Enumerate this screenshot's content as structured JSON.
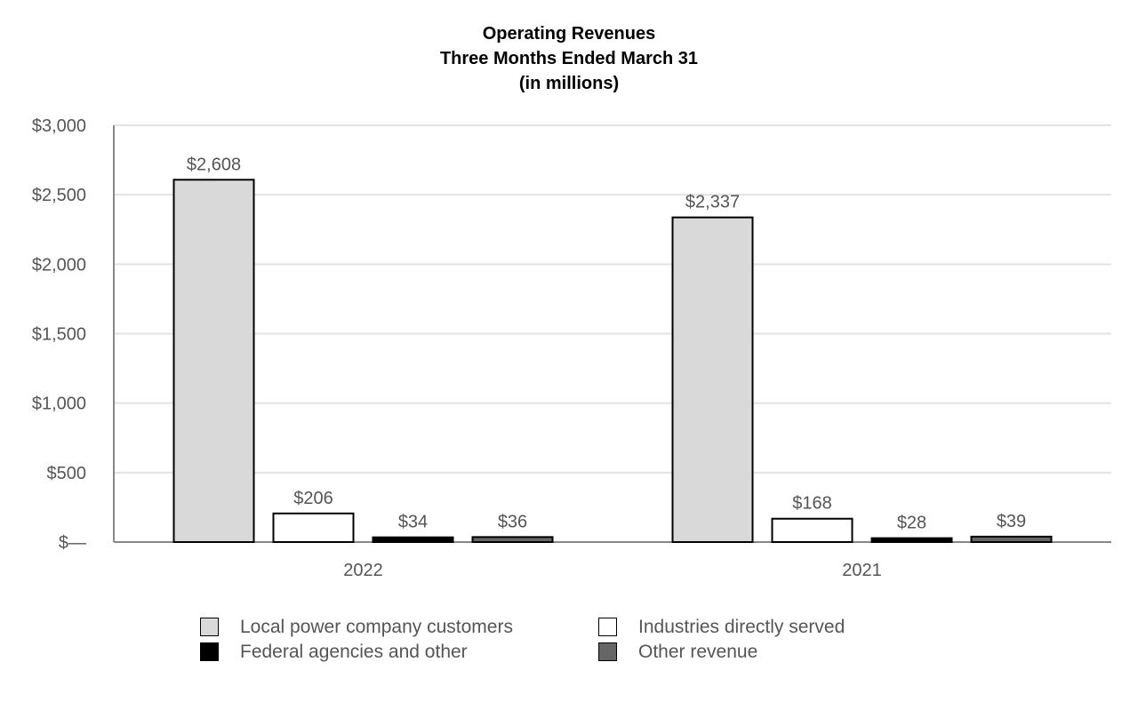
{
  "chart_data": {
    "type": "bar",
    "title_lines": [
      "Operating Revenues",
      "Three Months Ended March 31",
      "(in millions)"
    ],
    "categories": [
      "2022",
      "2021"
    ],
    "series": [
      {
        "name": "Local power company customers",
        "values": [
          2608,
          2337
        ],
        "labels": [
          "$2,608",
          "$2,337"
        ],
        "color": "#d9d9d9"
      },
      {
        "name": "Industries directly served",
        "values": [
          206,
          168
        ],
        "labels": [
          "$206",
          "$168"
        ],
        "color": "#ffffff"
      },
      {
        "name": "Federal agencies and other",
        "values": [
          34,
          28
        ],
        "labels": [
          "$34",
          "$28"
        ],
        "color": "#000000"
      },
      {
        "name": "Other revenue",
        "values": [
          36,
          39
        ],
        "labels": [
          "$36",
          "$39"
        ],
        "color": "#666666"
      }
    ],
    "yticks": [
      {
        "value": 0,
        "label": "$—"
      },
      {
        "value": 500,
        "label": "$500"
      },
      {
        "value": 1000,
        "label": "$1,000"
      },
      {
        "value": 1500,
        "label": "$1,500"
      },
      {
        "value": 2000,
        "label": "$2,000"
      },
      {
        "value": 2500,
        "label": "$2,500"
      },
      {
        "value": 3000,
        "label": "$3,000"
      }
    ],
    "ylim": [
      0,
      3000
    ],
    "grid": true,
    "legend_position": "bottom"
  }
}
